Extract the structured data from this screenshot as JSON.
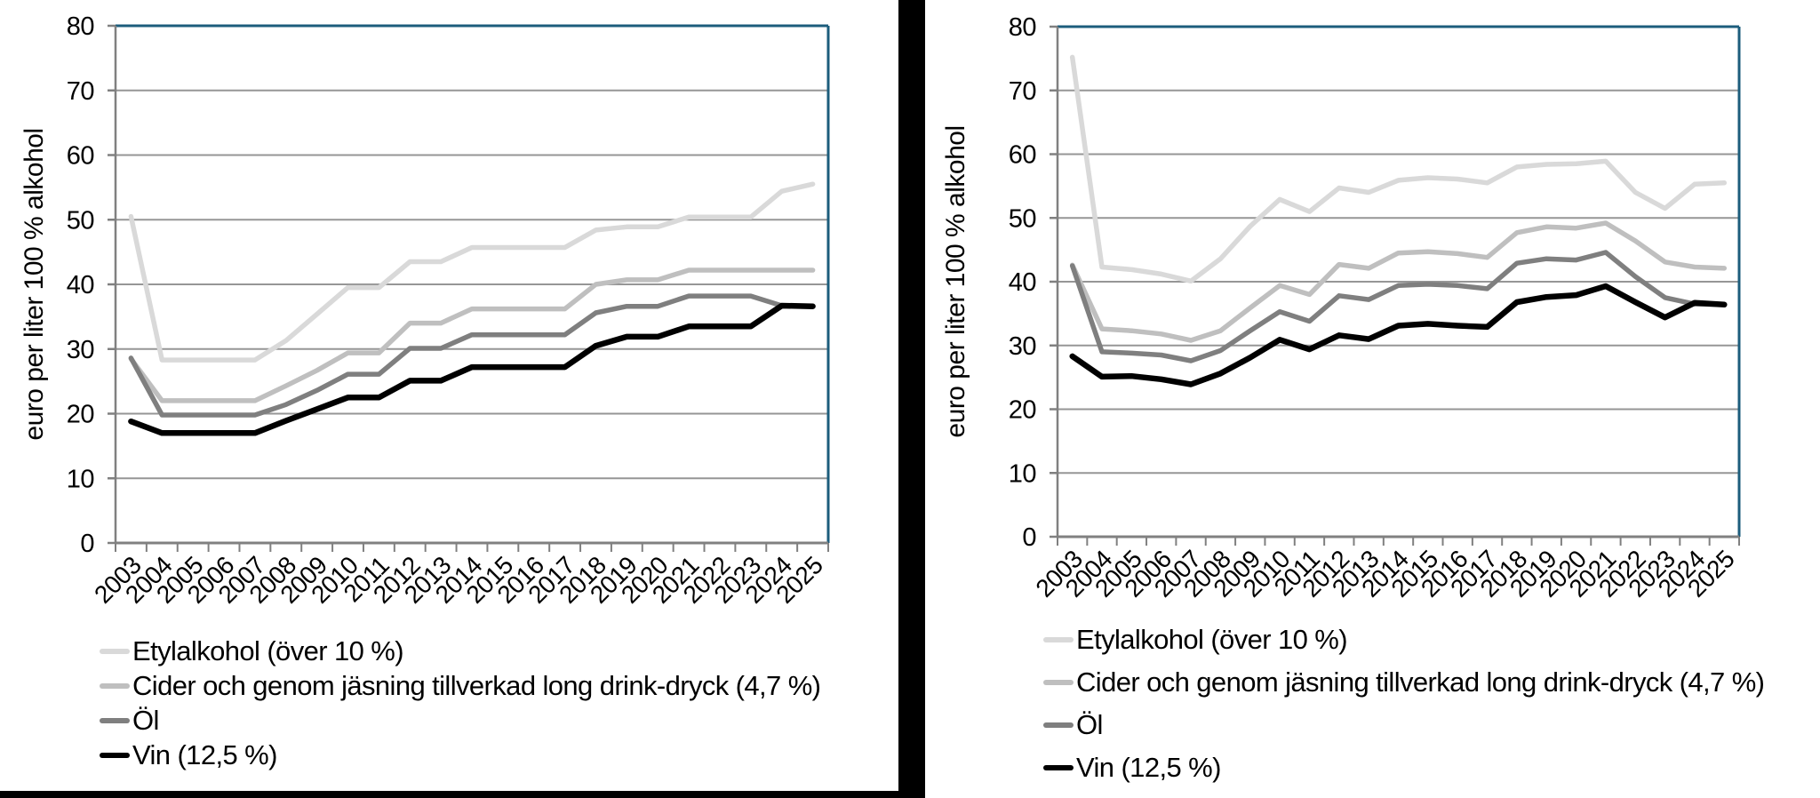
{
  "decor": {
    "background_color": "#ffffff",
    "separator_bar_color": "#000000"
  },
  "styles": {
    "grid_color": "#969696",
    "axis_color": "#808080",
    "plot_border_color": "#1c5d7c",
    "text_color": "#000000"
  },
  "chart_data": [
    {
      "type": "line",
      "panel": "left",
      "title": "",
      "xlabel": "",
      "ylabel": "euro per liter 100 % alkohol",
      "ylim": [
        0,
        80
      ],
      "ytick_step": 10,
      "yticks": [
        0,
        10,
        20,
        30,
        40,
        50,
        60,
        70,
        80
      ],
      "grid": true,
      "legend_position": "bottom-left",
      "categories": [
        "2003",
        "2004",
        "2005",
        "2006",
        "2007",
        "2008",
        "2009",
        "2010",
        "2011",
        "2012",
        "2013",
        "2014",
        "2015",
        "2016",
        "2017",
        "2018",
        "2019",
        "2020",
        "2021",
        "2022",
        "2023",
        "2024",
        "2025"
      ],
      "series": [
        {
          "name": "Etylalkohol (över 10 %)",
          "color": "#d9d9d9",
          "values": [
            50.5,
            28.3,
            28.3,
            28.3,
            28.3,
            31.3,
            35.4,
            39.5,
            39.5,
            43.5,
            43.5,
            45.7,
            45.7,
            45.7,
            45.7,
            48.4,
            48.9,
            48.9,
            50.4,
            50.4,
            50.4,
            54.4,
            55.5
          ]
        },
        {
          "name": "Cider och genom jäsning tillverkad long drink-dryck (4,7 %)",
          "color": "#bfbfbf",
          "values": [
            28.5,
            22.0,
            22.0,
            22.0,
            22.0,
            24.3,
            26.7,
            29.4,
            29.4,
            34.0,
            34.0,
            36.2,
            36.2,
            36.2,
            36.2,
            40.0,
            40.7,
            40.7,
            42.2,
            42.2,
            42.2,
            42.2,
            42.2
          ]
        },
        {
          "name": "Öl",
          "color": "#7f7f7f",
          "values": [
            28.6,
            19.8,
            19.8,
            19.8,
            19.8,
            21.4,
            23.6,
            26.1,
            26.1,
            30.1,
            30.1,
            32.2,
            32.2,
            32.2,
            32.2,
            35.6,
            36.6,
            36.6,
            38.2,
            38.2,
            38.2,
            36.7,
            36.6
          ]
        },
        {
          "name": "Vin (12,5 %)",
          "color": "#000000",
          "values": [
            18.8,
            17.0,
            17.0,
            17.0,
            17.0,
            18.9,
            20.7,
            22.5,
            22.5,
            25.1,
            25.1,
            27.2,
            27.2,
            27.2,
            27.2,
            30.5,
            31.9,
            31.9,
            33.5,
            33.5,
            33.5,
            36.7,
            36.6
          ]
        }
      ]
    },
    {
      "type": "line",
      "panel": "right",
      "title": "",
      "xlabel": "",
      "ylabel": "euro per liter 100 % alkohol",
      "ylim": [
        0,
        80
      ],
      "ytick_step": 10,
      "yticks": [
        0,
        10,
        20,
        30,
        40,
        50,
        60,
        70,
        80
      ],
      "grid": true,
      "legend_position": "bottom-left",
      "categories": [
        "2003",
        "2004",
        "2005",
        "2006",
        "2007",
        "2008",
        "2009",
        "2010",
        "2011",
        "2012",
        "2013",
        "2014",
        "2015",
        "2016",
        "2017",
        "2018",
        "2019",
        "2020",
        "2021",
        "2022",
        "2023",
        "2024",
        "2025"
      ],
      "series": [
        {
          "name": "Etylalkohol (över 10 %)",
          "color": "#d9d9d9",
          "values": [
            75.2,
            42.3,
            41.9,
            41.2,
            40.1,
            43.6,
            48.7,
            52.9,
            51.0,
            54.7,
            54.0,
            55.9,
            56.3,
            56.1,
            55.5,
            58.0,
            58.4,
            58.5,
            58.9,
            54.0,
            51.5,
            55.3,
            55.5
          ]
        },
        {
          "name": "Cider och genom jäsning tillverkad long drink-dryck (4,7 %)",
          "color": "#bfbfbf",
          "values": [
            42.6,
            32.6,
            32.3,
            31.8,
            30.8,
            32.3,
            35.9,
            39.4,
            38.0,
            42.7,
            42.1,
            44.5,
            44.7,
            44.4,
            43.8,
            47.7,
            48.6,
            48.4,
            49.2,
            46.4,
            43.1,
            42.3,
            42.1
          ]
        },
        {
          "name": "Öl",
          "color": "#7f7f7f",
          "values": [
            42.5,
            29.0,
            28.8,
            28.5,
            27.6,
            29.2,
            32.3,
            35.3,
            33.8,
            37.8,
            37.2,
            39.4,
            39.6,
            39.4,
            38.9,
            42.9,
            43.6,
            43.4,
            44.6,
            40.8,
            37.5,
            36.5,
            36.4
          ]
        },
        {
          "name": "Vin (12,5 %)",
          "color": "#000000",
          "values": [
            28.3,
            25.1,
            25.2,
            24.7,
            23.9,
            25.6,
            28.1,
            30.9,
            29.4,
            31.6,
            31.0,
            33.1,
            33.4,
            33.1,
            32.9,
            36.8,
            37.6,
            37.9,
            39.3,
            36.8,
            34.4,
            36.7,
            36.4
          ]
        }
      ]
    }
  ]
}
